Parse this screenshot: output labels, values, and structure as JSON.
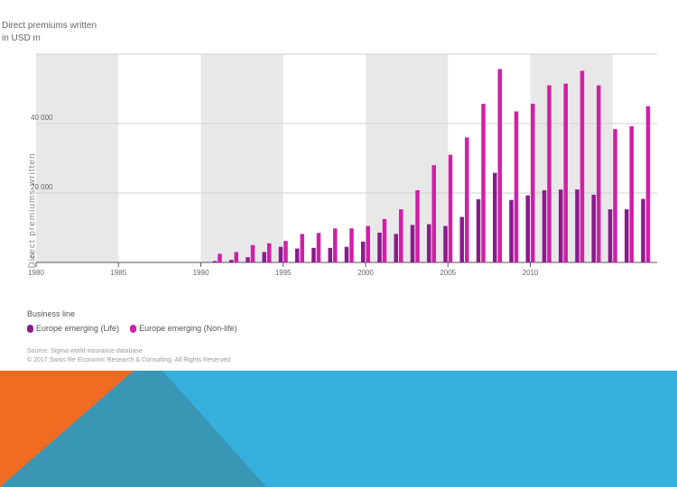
{
  "chart_data": {
    "type": "bar",
    "title": "Direct premiums written\nin USD m",
    "ylabel": "Direct premiums written",
    "ylim": [
      0,
      60000
    ],
    "yticks": [
      0,
      20000,
      40000
    ],
    "ytick_labels": [
      "0",
      "20 000",
      "40 000"
    ],
    "xticks": [
      1980,
      1985,
      1990,
      1995,
      2000,
      2005,
      2010
    ],
    "xtick_labels": [
      "1980",
      "1985",
      "1990",
      "1995",
      "2000",
      "2005",
      "2010"
    ],
    "shaded_periods": [
      [
        1980,
        1985
      ],
      [
        1990,
        1995
      ],
      [
        2000,
        2005
      ],
      [
        2010,
        2015
      ]
    ],
    "categories": [
      1991,
      1992,
      1993,
      1994,
      1995,
      1996,
      1997,
      1998,
      1999,
      2000,
      2001,
      2002,
      2003,
      2004,
      2005,
      2006,
      2007,
      2008,
      2009,
      2010,
      2011,
      2012,
      2013,
      2014,
      2015,
      2016,
      2017
    ],
    "series": [
      {
        "name": "Europe emerging (Life)",
        "color": "#8b1a8e",
        "values": [
          400,
          700,
          1500,
          3000,
          4500,
          4000,
          4200,
          4200,
          4500,
          6000,
          8600,
          8200,
          10800,
          11000,
          10500,
          13100,
          18200,
          25800,
          18000,
          19300,
          20800,
          21000,
          21000,
          19500,
          15300,
          15300,
          18300
        ]
      },
      {
        "name": "Europe emerging (Non-life)",
        "color": "#d11fa8",
        "values": [
          2500,
          3000,
          5000,
          5500,
          6200,
          8200,
          8500,
          9800,
          9800,
          10500,
          12500,
          15300,
          20800,
          28000,
          31000,
          36000,
          45700,
          55700,
          43500,
          45700,
          51000,
          51500,
          55200,
          51000,
          38400,
          39200,
          45000
        ]
      }
    ],
    "legend_title": "Business line",
    "legend_position": "bottom-left",
    "grid": true
  },
  "source": "Source: Sigma world insurance database\n© 2017 Swiss Re Economic Research & Consulting. All Rights Reserved",
  "colors": {
    "shade": "#e8e8e8",
    "grid": "#d0d0d0",
    "footer_blue": "#37afdc",
    "footer_orange": "#f26b22",
    "footer_teal": "#3a96b5"
  }
}
